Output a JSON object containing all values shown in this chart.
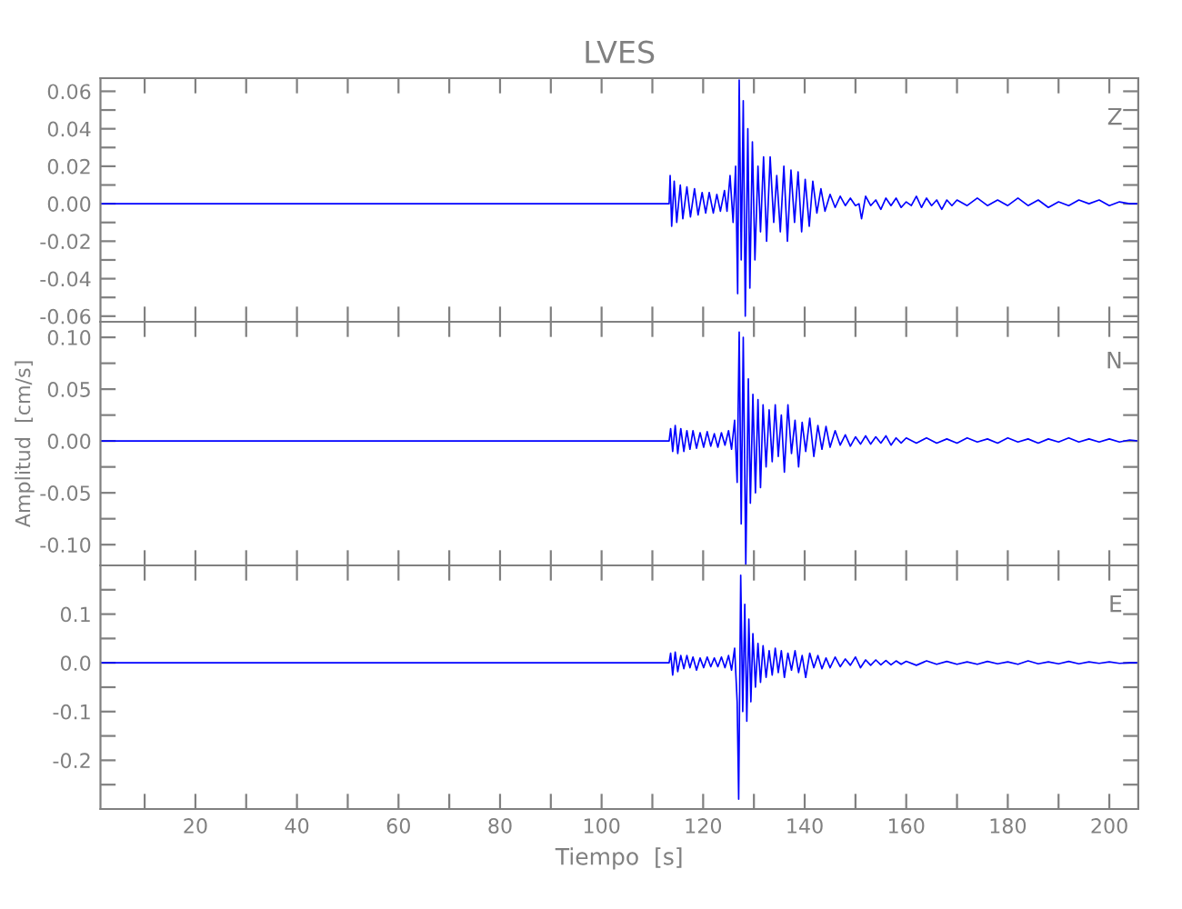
{
  "chart_data": [
    {
      "type": "line",
      "title": "LVES",
      "annotations": [
        "Z"
      ],
      "tick_labels": "y",
      "xlim": [
        1.3,
        205.7
      ],
      "xticks": [
        {
          "value": 10,
          "label": null
        },
        20,
        {
          "value": 30,
          "label": null
        },
        40,
        {
          "value": 50,
          "label": null
        },
        60,
        {
          "value": 70,
          "label": null
        },
        80,
        {
          "value": 90,
          "label": null
        },
        100,
        {
          "value": 110,
          "label": null
        },
        120,
        {
          "value": 130,
          "label": null
        },
        140,
        {
          "value": 150,
          "label": null
        },
        160,
        {
          "value": 170,
          "label": null
        },
        180,
        {
          "value": 190,
          "label": null
        },
        200
      ],
      "ylim": [
        -0.063,
        0.067
      ],
      "yticks": [
        -0.06,
        {
          "value": -0.05,
          "label": null
        },
        -0.04,
        {
          "value": -0.03,
          "label": null
        },
        -0.02,
        {
          "value": -0.01,
          "label": null
        },
        {
          "value": 0,
          "label": "0.00"
        },
        {
          "value": 0.01,
          "label": null
        },
        0.02,
        {
          "value": 0.03,
          "label": null
        },
        0.04,
        {
          "value": 0.05,
          "label": null
        },
        0.06
      ],
      "series": [
        {
          "color": "#0000ff",
          "x": [
            1.3,
            50,
            100,
            113.3,
            113.5,
            113.8,
            114.3,
            114.8,
            115.5,
            116,
            116.8,
            117.5,
            118.3,
            119,
            119.8,
            120.5,
            121.2,
            122,
            122.7,
            123.4,
            124.2,
            124.7,
            125.3,
            125.9,
            126.4,
            126.8,
            127.1,
            127.5,
            127.9,
            128.3,
            128.8,
            129.2,
            129.7,
            130.2,
            130.8,
            131.3,
            131.9,
            132.5,
            133.2,
            133.9,
            134.5,
            135.2,
            135.9,
            136.6,
            137.3,
            138,
            138.7,
            139.4,
            140.1,
            140.9,
            141.6,
            142.4,
            143.2,
            144,
            145,
            146,
            147,
            148,
            149,
            150,
            150.7,
            151.2,
            152,
            153,
            154,
            155,
            156,
            157,
            158,
            159,
            160,
            161,
            162,
            163,
            164,
            165,
            166,
            167,
            168,
            169,
            170,
            172,
            174,
            176,
            178,
            180,
            182,
            184,
            186,
            188,
            190,
            192,
            194,
            196,
            198,
            200,
            202,
            204,
            205.7
          ],
          "values": [
            0,
            0,
            0,
            0,
            0.015,
            -0.012,
            0.012,
            -0.01,
            0.01,
            -0.008,
            0.009,
            -0.007,
            0.008,
            -0.006,
            0.006,
            -0.005,
            0.006,
            -0.005,
            0.005,
            -0.004,
            0.007,
            -0.004,
            0.015,
            -0.01,
            0.02,
            -0.048,
            0.066,
            -0.03,
            0.055,
            -0.06,
            0.04,
            -0.045,
            0.033,
            -0.03,
            0.02,
            -0.015,
            0.025,
            -0.02,
            0.025,
            -0.01,
            0.015,
            -0.015,
            0.02,
            -0.02,
            0.018,
            -0.01,
            0.017,
            -0.015,
            0.013,
            -0.012,
            0.012,
            -0.005,
            0.008,
            -0.004,
            0.005,
            -0.002,
            0.004,
            -0.001,
            0.003,
            -0.001,
            0,
            -0.008,
            0.004,
            -0.001,
            0.002,
            -0.003,
            0.003,
            -0.001,
            0.003,
            -0.002,
            0.001,
            -0.001,
            0.004,
            -0.002,
            0.003,
            -0.001,
            0.002,
            -0.003,
            0.002,
            -0.001,
            0.002,
            -0.001,
            0.003,
            -0.001,
            0.002,
            -0.001,
            0.003,
            -0.001,
            0.002,
            -0.002,
            0.001,
            -0.001,
            0.002,
            0,
            0.002,
            -0.001,
            0.001,
            0,
            0
          ]
        }
      ]
    },
    {
      "type": "line",
      "ylabel": "Amplitud  [cm/s]",
      "annotations": [
        "N"
      ],
      "tick_labels": "y",
      "xlim": [
        1.3,
        205.7
      ],
      "xticks": [
        {
          "value": 10,
          "label": null
        },
        20,
        {
          "value": 30,
          "label": null
        },
        40,
        {
          "value": 50,
          "label": null
        },
        60,
        {
          "value": 70,
          "label": null
        },
        80,
        {
          "value": 90,
          "label": null
        },
        100,
        {
          "value": 110,
          "label": null
        },
        120,
        {
          "value": 130,
          "label": null
        },
        140,
        {
          "value": 150,
          "label": null
        },
        160,
        {
          "value": 170,
          "label": null
        },
        180,
        {
          "value": 190,
          "label": null
        },
        200
      ],
      "ylim": [
        -0.12,
        0.115
      ],
      "yticks": [
        {
          "value": -0.1,
          "label": "-0.10"
        },
        {
          "value": -0.075,
          "label": null
        },
        -0.05,
        {
          "value": -0.025,
          "label": null
        },
        {
          "value": 0,
          "label": "0.00"
        },
        {
          "value": 0.025,
          "label": null
        },
        0.05,
        {
          "value": 0.075,
          "label": null
        },
        {
          "value": 0.1,
          "label": "0.10"
        }
      ],
      "series": [
        {
          "color": "#0000ff",
          "x": [
            1.3,
            50,
            100,
            113.3,
            113.6,
            114,
            114.5,
            115,
            115.6,
            116.2,
            116.8,
            117.4,
            118,
            118.7,
            119.4,
            120.1,
            120.8,
            121.5,
            122.2,
            122.9,
            123.6,
            124.3,
            125,
            125.6,
            126.2,
            126.7,
            127.1,
            127.5,
            127.9,
            128.4,
            128.9,
            129.3,
            129.8,
            130.3,
            130.8,
            131.3,
            131.8,
            132.4,
            133,
            133.6,
            134.2,
            134.8,
            135.4,
            136,
            136.7,
            137.4,
            138.1,
            138.8,
            139.5,
            140.2,
            141,
            141.8,
            142.6,
            143.4,
            144.2,
            145,
            146,
            147,
            148,
            149,
            150,
            151,
            152,
            153,
            154,
            155,
            156,
            157,
            158,
            159,
            160,
            162,
            164,
            166,
            168,
            170,
            172,
            174,
            176,
            178,
            180,
            182,
            184,
            186,
            188,
            190,
            192,
            194,
            196,
            198,
            200,
            202,
            204,
            205.7
          ],
          "values": [
            0,
            0,
            0,
            0,
            0.012,
            -0.01,
            0.015,
            -0.012,
            0.012,
            -0.01,
            0.01,
            -0.008,
            0.01,
            -0.007,
            0.008,
            -0.006,
            0.009,
            -0.005,
            0.007,
            -0.006,
            0.008,
            -0.004,
            0.01,
            -0.008,
            0.02,
            -0.04,
            0.105,
            -0.08,
            0.1,
            -0.12,
            0.06,
            -0.06,
            0.045,
            -0.05,
            0.04,
            -0.045,
            0.035,
            -0.025,
            0.03,
            -0.02,
            0.035,
            -0.015,
            0.025,
            -0.03,
            0.035,
            -0.012,
            0.02,
            -0.025,
            0.018,
            -0.01,
            0.022,
            -0.015,
            0.015,
            -0.008,
            0.014,
            -0.006,
            0.01,
            -0.004,
            0.006,
            -0.005,
            0.004,
            -0.003,
            0.005,
            -0.003,
            0.004,
            -0.002,
            0.005,
            -0.004,
            0.003,
            -0.002,
            0.003,
            -0.002,
            0.003,
            -0.002,
            0.002,
            -0.002,
            0.003,
            -0.001,
            0.002,
            -0.002,
            0.003,
            -0.001,
            0.002,
            -0.002,
            0.002,
            -0.001,
            0.003,
            -0.001,
            0.002,
            -0.001,
            0.002,
            -0.001,
            0.001,
            0
          ]
        }
      ]
    },
    {
      "type": "line",
      "xlabel": "Tiempo  [s]",
      "annotations": [
        "E"
      ],
      "xlim": [
        1.3,
        205.7
      ],
      "xticks": [
        {
          "value": 10,
          "label": null
        },
        20,
        {
          "value": 30,
          "label": null
        },
        40,
        {
          "value": 50,
          "label": null
        },
        60,
        {
          "value": 70,
          "label": null
        },
        80,
        {
          "value": 90,
          "label": null
        },
        100,
        {
          "value": 110,
          "label": null
        },
        120,
        {
          "value": 130,
          "label": null
        },
        140,
        {
          "value": 150,
          "label": null
        },
        160,
        {
          "value": 170,
          "label": null
        },
        180,
        {
          "value": 190,
          "label": null
        },
        200
      ],
      "ylim": [
        -0.3,
        0.2
      ],
      "yticks": [
        {
          "value": -0.25,
          "label": null
        },
        -0.2,
        {
          "value": -0.15,
          "label": null
        },
        -0.1,
        {
          "value": -0.05,
          "label": null
        },
        {
          "value": 0,
          "label": "0.0"
        },
        {
          "value": 0.05,
          "label": null
        },
        0.1,
        {
          "value": 0.15,
          "label": null
        }
      ],
      "series": [
        {
          "color": "#0000ff",
          "x": [
            1.3,
            50,
            100,
            113.3,
            113.6,
            114,
            114.5,
            115,
            115.6,
            116.2,
            116.8,
            117.4,
            118,
            118.7,
            119.4,
            120.1,
            120.8,
            121.5,
            122.2,
            122.9,
            123.6,
            124.3,
            125,
            125.6,
            126.2,
            126.7,
            127,
            127.4,
            127.8,
            128.2,
            128.6,
            129,
            129.4,
            129.8,
            130.3,
            130.8,
            131.3,
            131.8,
            132.4,
            133,
            133.6,
            134.2,
            134.8,
            135.4,
            136,
            136.7,
            137.4,
            138.1,
            138.8,
            139.5,
            140.2,
            141,
            141.8,
            142.6,
            143.4,
            144.2,
            145,
            146,
            147,
            148,
            149,
            150,
            151,
            152,
            153,
            154,
            155,
            156,
            157,
            158,
            159,
            160,
            162,
            164,
            166,
            168,
            170,
            172,
            174,
            176,
            178,
            180,
            182,
            184,
            186,
            188,
            190,
            192,
            194,
            196,
            198,
            200,
            202,
            204,
            205.7
          ],
          "values": [
            0,
            0,
            0,
            0,
            0.02,
            -0.025,
            0.022,
            -0.018,
            0.015,
            -0.012,
            0.015,
            -0.01,
            0.012,
            -0.015,
            0.01,
            -0.01,
            0.012,
            -0.008,
            0.01,
            -0.008,
            0.012,
            -0.01,
            0.015,
            -0.015,
            0.03,
            -0.08,
            -0.28,
            0.18,
            -0.1,
            0.12,
            -0.12,
            0.09,
            -0.08,
            0.06,
            -0.05,
            0.04,
            -0.04,
            0.035,
            -0.03,
            0.025,
            -0.025,
            0.03,
            -0.02,
            0.025,
            -0.03,
            0.02,
            -0.015,
            0.025,
            -0.02,
            0.015,
            -0.03,
            0.02,
            -0.01,
            0.015,
            -0.012,
            0.01,
            -0.01,
            0.012,
            -0.008,
            0.008,
            -0.005,
            0.012,
            -0.01,
            0.006,
            -0.005,
            0.006,
            -0.004,
            0.005,
            -0.004,
            0.004,
            -0.003,
            0.003,
            -0.005,
            0.004,
            -0.003,
            0.003,
            -0.003,
            0.002,
            -0.003,
            0.003,
            -0.002,
            0.002,
            -0.003,
            0.004,
            -0.002,
            0.002,
            -0.002,
            0.003,
            -0.002,
            0.002,
            -0.001,
            0.002,
            -0.001,
            0,
            0
          ]
        }
      ]
    }
  ]
}
